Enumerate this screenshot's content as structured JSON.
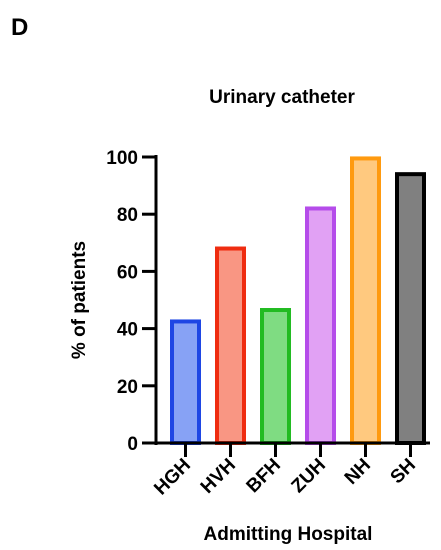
{
  "panel_label": "D",
  "chart_data": {
    "type": "bar",
    "title": "Urinary catheter",
    "xlabel": "Admitting Hospital",
    "ylabel": "% of patients",
    "ylim": [
      0,
      100
    ],
    "yticks": [
      0,
      20,
      40,
      60,
      80,
      100
    ],
    "categories": [
      "HGH",
      "HVH",
      "BFH",
      "ZUH",
      "NH",
      "SH"
    ],
    "values": [
      42.5,
      68,
      46.5,
      82,
      99.5,
      94
    ],
    "bar_fill_colors": [
      "#87a2f5",
      "#f99683",
      "#7fdc82",
      "#e1a1f4",
      "#ffc97f",
      "#808080"
    ],
    "bar_edge_colors": [
      "#1e46e4",
      "#ef2c10",
      "#22bb22",
      "#b54cea",
      "#ff9a0f",
      "#000000"
    ],
    "grid": false,
    "legend": "none"
  }
}
